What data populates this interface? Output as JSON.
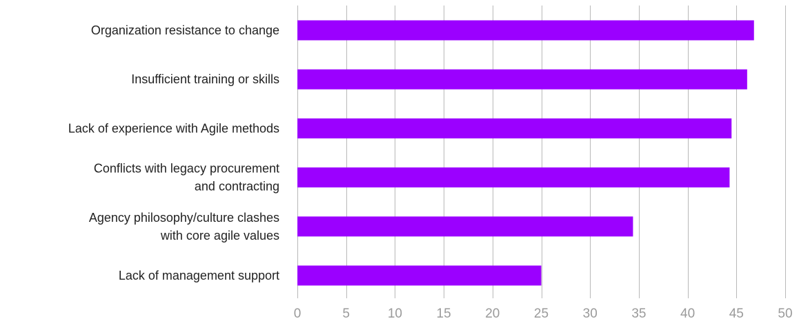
{
  "chart_data": {
    "type": "bar",
    "orientation": "horizontal",
    "title": "",
    "xlabel": "",
    "ylabel": "",
    "categories": [
      [
        "Organization resistance to change"
      ],
      [
        "Insufficient training or skills"
      ],
      [
        "Lack of experience with Agile methods"
      ],
      [
        "Conflicts with legacy procurement",
        "and contracting"
      ],
      [
        "Agency philosophy/culture clashes",
        "with core agile values"
      ],
      [
        "Lack of management support"
      ]
    ],
    "values": [
      46.8,
      46.1,
      44.5,
      44.3,
      34.4,
      25.0
    ],
    "xlim": [
      0,
      50
    ],
    "ticks": [
      0,
      5,
      10,
      15,
      20,
      25,
      30,
      35,
      40,
      45,
      50
    ],
    "bar_color": "#9b00ff",
    "grid": true
  }
}
